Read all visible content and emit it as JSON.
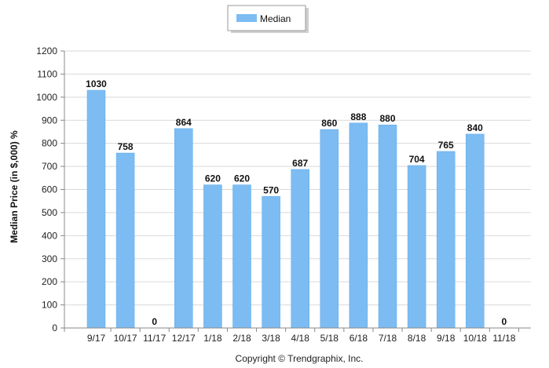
{
  "chart_data": {
    "type": "bar",
    "categories": [
      "9/17",
      "10/17",
      "11/17",
      "12/17",
      "1/18",
      "2/18",
      "3/18",
      "4/18",
      "5/18",
      "6/18",
      "7/18",
      "8/18",
      "9/18",
      "10/18",
      "11/18"
    ],
    "series": [
      {
        "name": "Median",
        "values": [
          1030,
          758,
          0,
          864,
          620,
          620,
          570,
          687,
          860,
          888,
          880,
          704,
          765,
          840,
          0
        ],
        "color": "#7cbcf2"
      }
    ],
    "ylabel": "Median Price (in $,000) %",
    "ylim": [
      0,
      1200
    ],
    "yticks": [
      0,
      100,
      200,
      300,
      400,
      500,
      600,
      700,
      800,
      900,
      1000,
      1100,
      1200
    ],
    "grid": true,
    "legend_position": "top-center",
    "data_labels": true
  },
  "footer": {
    "copyright": "Copyright © Trendgraphix, Inc."
  },
  "colors": {
    "bar": "#7cbcf2",
    "bar_edge": "#5aa8ea",
    "grid": "#d9d9d9",
    "axis": "#888888",
    "legend_border": "#9a9a9a"
  }
}
